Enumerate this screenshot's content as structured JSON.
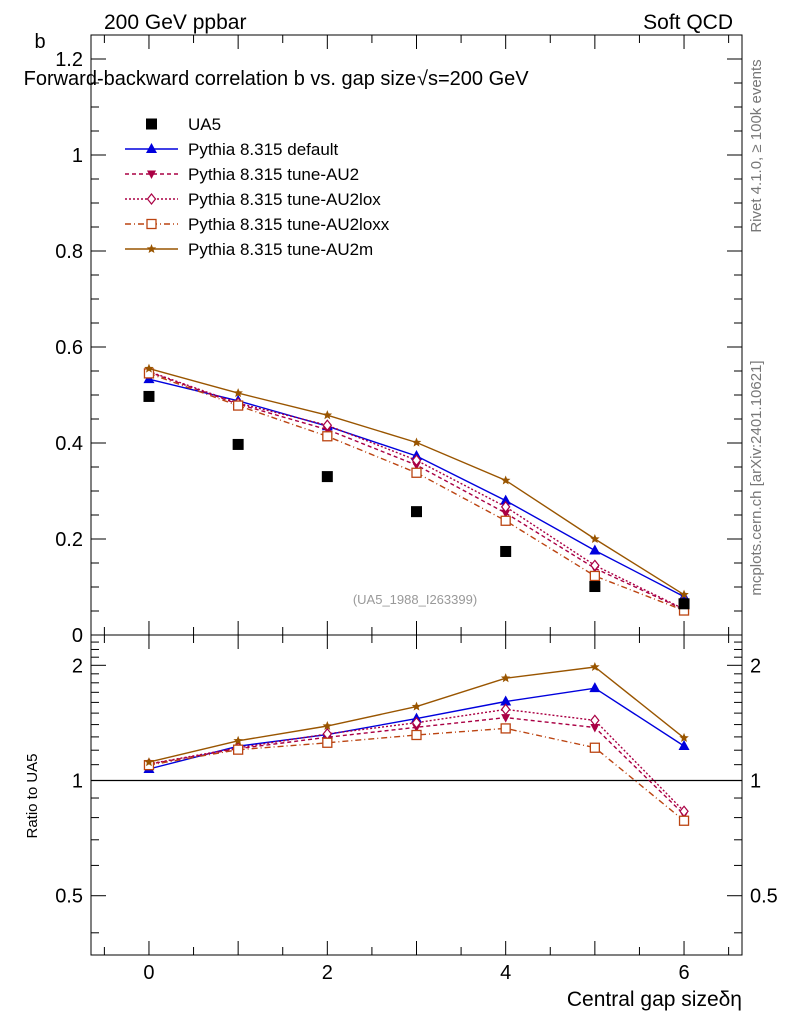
{
  "header": {
    "left": "200 GeV ppbar",
    "right": "Soft QCD"
  },
  "side": {
    "rivet": "Rivet 4.1.0, ≥ 100k events",
    "mcplots": "mcplots.cern.ch [arXiv:2401.10621]"
  },
  "chart_data": {
    "type": "scatter",
    "title": "Forward-backward correlation b vs. gap size",
    "title_energy": "√s=200 GeV",
    "analysis_tag": "(UA5_1988_I263399)",
    "xlabel": "Central gap sizeδη",
    "ylabel": "b",
    "ratio_ylabel": "Ratio to UA5",
    "xlim": [
      -0.65,
      6.65
    ],
    "ylim": [
      0,
      1.25
    ],
    "ratio_ylim": [
      0.35,
      2.4
    ],
    "x": [
      0,
      1,
      2,
      3,
      4,
      5,
      6
    ],
    "main_ticks": [
      "0",
      "0.2",
      "0.4",
      "0.6",
      "0.8",
      "1",
      "1.2"
    ],
    "main_tick_values": [
      0,
      0.2,
      0.4,
      0.6,
      0.8,
      1,
      1.2
    ],
    "ratio_ticks": [
      "0.5",
      "1",
      "2"
    ],
    "ratio_tick_values": [
      0.5,
      1,
      2
    ],
    "x_ticks": [
      "0",
      "2",
      "4",
      "6"
    ],
    "x_tick_values": [
      0,
      2,
      4,
      6
    ],
    "data": {
      "name": "UA5",
      "color": "#000000",
      "values": [
        0.497,
        0.397,
        0.33,
        0.257,
        0.174,
        0.101,
        0.065
      ]
    },
    "series": [
      {
        "name": "Pythia 8.315 default",
        "color": "#0000dd",
        "dash": "",
        "marker": "triangle-up",
        "values": [
          0.533,
          0.488,
          0.435,
          0.373,
          0.28,
          0.176,
          0.08
        ],
        "ratio": [
          1.072,
          1.229,
          1.318,
          1.451,
          1.609,
          1.743,
          1.231
        ]
      },
      {
        "name": "Pythia 8.315 tune-AU2",
        "color": "#aa0044",
        "dash": "4,3",
        "marker": "triangle-down",
        "values": [
          0.548,
          0.481,
          0.428,
          0.354,
          0.254,
          0.139,
          0.053
        ],
        "ratio": [
          1.103,
          1.212,
          1.297,
          1.377,
          1.46,
          1.376,
          0.815
        ]
      },
      {
        "name": "Pythia 8.315 tune-AU2lox",
        "color": "#aa0044",
        "dash": "2,2",
        "marker": "diamond-open",
        "values": [
          0.549,
          0.483,
          0.437,
          0.364,
          0.267,
          0.145,
          0.054
        ],
        "ratio": [
          1.105,
          1.217,
          1.324,
          1.416,
          1.534,
          1.436,
          0.831
        ]
      },
      {
        "name": "Pythia 8.315 tune-AU2loxx",
        "color": "#bb4411",
        "dash": "6,3,1,3",
        "marker": "square-open",
        "values": [
          0.545,
          0.478,
          0.414,
          0.338,
          0.238,
          0.123,
          0.051
        ],
        "ratio": [
          1.097,
          1.204,
          1.255,
          1.315,
          1.368,
          1.218,
          0.785
        ]
      },
      {
        "name": "Pythia 8.315 tune-AU2m",
        "color": "#995500",
        "dash": "",
        "marker": "star",
        "values": [
          0.555,
          0.504,
          0.458,
          0.401,
          0.322,
          0.2,
          0.084
        ],
        "ratio": [
          1.117,
          1.27,
          1.388,
          1.56,
          1.851,
          1.98,
          1.292
        ]
      }
    ]
  }
}
